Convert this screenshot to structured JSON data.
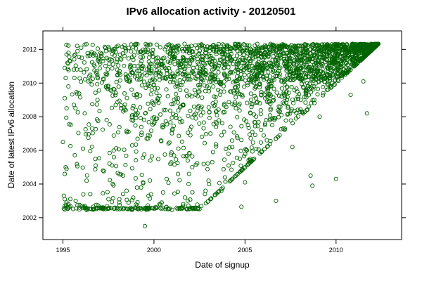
{
  "chart_data": {
    "type": "scatter",
    "title": "IPv6 allocation activity -  20120501",
    "xlabel": "Date of signup",
    "ylabel": "Date of latest IPv6 allocation",
    "xlim": [
      1993.9,
      2013.6
    ],
    "ylim": [
      2000.7,
      2013.1
    ],
    "x_ticks": [
      1995,
      2000,
      2005,
      2010
    ],
    "y_ticks": [
      2002,
      2004,
      2006,
      2008,
      2010,
      2012
    ],
    "x_tick_labels": [
      "1995",
      "2000",
      "2005",
      "2010"
    ],
    "y_tick_labels": [
      "2002",
      "2004",
      "2006",
      "2008",
      "2010",
      "2012"
    ],
    "grid": false,
    "legend": "none",
    "marker": "open-circle",
    "point_color": "#006400",
    "observations_end": 2012.33,
    "series": [
      {
        "points": [
          [
            1995.05,
            2002.55
          ],
          [
            1995.1,
            2002.7
          ],
          [
            1995.15,
            2002.6
          ],
          [
            1995.2,
            2002.9
          ],
          [
            1995.1,
            2003.1
          ],
          [
            1995.25,
            2002.6
          ],
          [
            1995.05,
            2003.3
          ],
          [
            1995.3,
            2002.8
          ],
          [
            1995.1,
            2004.6
          ],
          [
            1995.2,
            2004.9
          ],
          [
            1995.15,
            2005.0
          ],
          [
            1995.0,
            2006.5
          ],
          [
            1995.2,
            2008.5
          ],
          [
            1995.1,
            2009.1
          ],
          [
            1995.3,
            2009.8
          ],
          [
            1995.15,
            2010.3
          ],
          [
            1995.1,
            2010.9
          ],
          [
            1995.25,
            2011.2
          ],
          [
            1995.2,
            2011.7
          ],
          [
            1995.4,
            2011.3
          ],
          [
            1995.6,
            2010.8
          ],
          [
            1995.8,
            2011.9
          ],
          [
            1996.0,
            2012.1
          ],
          [
            1995.7,
            2003.0
          ],
          [
            1996.2,
            2002.7
          ],
          [
            1996.5,
            2003.4
          ],
          [
            1996.3,
            2004.2
          ],
          [
            1996.8,
            2005.1
          ],
          [
            1996.1,
            2006.1
          ],
          [
            1996.6,
            2007.3
          ],
          [
            1996.2,
            2008.2
          ],
          [
            1996.9,
            2009.0
          ],
          [
            1996.4,
            2010.1
          ],
          [
            1996.7,
            2011.1
          ],
          [
            1997.1,
            2011.6
          ],
          [
            1997.3,
            2012.15
          ],
          [
            1997.0,
            2002.6
          ],
          [
            1997.5,
            2003.1
          ],
          [
            1997.2,
            2004.8
          ],
          [
            1997.8,
            2005.6
          ],
          [
            1997.4,
            2007.8
          ],
          [
            1997.9,
            2008.7
          ],
          [
            1997.6,
            2009.6
          ],
          [
            1998.0,
            2010.5
          ],
          [
            1998.2,
            2011.4
          ],
          [
            1998.4,
            2012.1
          ],
          [
            1998.1,
            2002.9
          ],
          [
            1998.5,
            2003.6
          ],
          [
            1998.3,
            2004.5
          ],
          [
            1998.8,
            2006.3
          ],
          [
            1998.6,
            2007.1
          ],
          [
            1999.0,
            2008.4
          ],
          [
            1998.9,
            2009.3
          ],
          [
            1999.2,
            2010.2
          ],
          [
            1999.1,
            2011.0
          ],
          [
            1999.4,
            2011.8
          ],
          [
            1999.6,
            2012.2
          ],
          [
            1999.3,
            2002.5
          ],
          [
            1999.5,
            2001.5
          ],
          [
            1999.7,
            2003.3
          ],
          [
            1999.4,
            2004.1
          ],
          [
            1999.8,
            2005.4
          ],
          [
            1999.6,
            2006.7
          ],
          [
            2000.0,
            2007.6
          ],
          [
            1999.9,
            2008.9
          ],
          [
            2000.2,
            2009.7
          ],
          [
            2000.1,
            2010.6
          ],
          [
            2000.4,
            2011.3
          ],
          [
            2000.6,
            2012.0
          ],
          [
            2000.3,
            2002.8
          ],
          [
            2000.5,
            2003.5
          ],
          [
            2000.7,
            2004.3
          ],
          [
            2000.9,
            2005.2
          ],
          [
            2000.8,
            2006.4
          ],
          [
            2001.0,
            2007.2
          ],
          [
            2001.2,
            2008.1
          ],
          [
            2001.1,
            2009.0
          ],
          [
            2001.4,
            2009.9
          ],
          [
            2001.3,
            2010.7
          ],
          [
            2001.6,
            2011.5
          ],
          [
            2001.8,
            2012.15
          ],
          [
            2001.5,
            2002.6
          ],
          [
            2001.7,
            2003.2
          ],
          [
            2001.9,
            2004.0
          ],
          [
            2002.1,
            2005.0
          ],
          [
            2002.0,
            2006.9
          ],
          [
            2002.3,
            2007.9
          ],
          [
            2002.2,
            2008.6
          ],
          [
            2002.5,
            2009.5
          ],
          [
            2002.4,
            2010.4
          ],
          [
            2002.7,
            2011.2
          ],
          [
            2002.9,
            2012.0
          ],
          [
            2002.6,
            2002.7
          ],
          [
            2002.8,
            2003.4
          ],
          [
            2003.0,
            2004.2
          ],
          [
            2003.2,
            2005.3
          ],
          [
            2003.1,
            2007.0
          ],
          [
            2003.4,
            2008.3
          ],
          [
            2003.3,
            2009.2
          ],
          [
            2003.6,
            2010.0
          ],
          [
            2003.5,
            2010.9
          ],
          [
            2003.8,
            2011.7
          ],
          [
            2004.0,
            2012.2
          ],
          [
            2003.7,
            2003.6
          ],
          [
            2003.9,
            2004.4
          ],
          [
            2004.1,
            2005.1
          ],
          [
            2004.3,
            2006.2
          ],
          [
            2004.2,
            2007.4
          ],
          [
            2004.5,
            2008.5
          ],
          [
            2004.4,
            2009.4
          ],
          [
            2004.7,
            2010.3
          ],
          [
            2004.6,
            2011.1
          ],
          [
            2004.9,
            2011.9
          ],
          [
            2004.8,
            2002.65
          ],
          [
            2005.0,
            2004.1
          ],
          [
            2005.2,
            2005.4
          ],
          [
            2005.1,
            2006.0
          ],
          [
            2005.4,
            2007.1
          ],
          [
            2005.3,
            2008.2
          ],
          [
            2005.6,
            2009.1
          ],
          [
            2005.5,
            2010.0
          ],
          [
            2005.8,
            2010.8
          ],
          [
            2005.7,
            2011.6
          ],
          [
            2006.0,
            2012.1
          ],
          [
            2005.9,
            2005.9
          ],
          [
            2006.2,
            2006.6
          ],
          [
            2006.1,
            2007.5
          ],
          [
            2006.4,
            2008.4
          ],
          [
            2006.3,
            2009.3
          ],
          [
            2006.6,
            2010.2
          ],
          [
            2006.5,
            2011.0
          ],
          [
            2006.8,
            2011.8
          ],
          [
            2006.7,
            2003.0
          ],
          [
            2006.9,
            2006.9
          ],
          [
            2007.1,
            2007.3
          ],
          [
            2007.0,
            2008.1
          ],
          [
            2007.3,
            2009.0
          ],
          [
            2007.2,
            2009.9
          ],
          [
            2007.5,
            2010.7
          ],
          [
            2007.4,
            2011.4
          ],
          [
            2007.7,
            2012.2
          ],
          [
            2007.6,
            2006.2
          ],
          [
            2007.8,
            2007.9
          ],
          [
            2008.0,
            2008.3
          ],
          [
            2007.9,
            2009.2
          ],
          [
            2008.2,
            2010.1
          ],
          [
            2008.1,
            2010.9
          ],
          [
            2008.4,
            2011.6
          ],
          [
            2008.3,
            2012.0
          ],
          [
            2008.6,
            2004.5
          ],
          [
            2008.7,
            2003.9
          ],
          [
            2008.5,
            2008.6
          ],
          [
            2008.8,
            2009.0
          ],
          [
            2008.7,
            2009.8
          ],
          [
            2009.0,
            2010.5
          ],
          [
            2008.9,
            2011.2
          ],
          [
            2009.2,
            2011.9
          ],
          [
            2009.1,
            2008.0
          ],
          [
            2009.3,
            2009.4
          ],
          [
            2009.5,
            2009.6
          ],
          [
            2009.4,
            2010.3
          ],
          [
            2009.7,
            2010.9
          ],
          [
            2009.6,
            2011.6
          ],
          [
            2009.9,
            2012.1
          ],
          [
            2010.0,
            2004.3
          ],
          [
            2009.8,
            2010.0
          ],
          [
            2010.1,
            2010.2
          ],
          [
            2010.0,
            2010.8
          ],
          [
            2010.3,
            2011.3
          ],
          [
            2010.2,
            2011.9
          ],
          [
            2010.5,
            2010.6
          ],
          [
            2010.7,
            2010.8
          ],
          [
            2010.6,
            2011.4
          ],
          [
            2010.9,
            2011.9
          ],
          [
            2010.8,
            2009.3
          ],
          [
            2011.0,
            2011.1
          ],
          [
            2011.2,
            2011.3
          ],
          [
            2011.1,
            2011.8
          ],
          [
            2011.4,
            2012.2
          ],
          [
            2011.6,
            2011.7
          ],
          [
            2011.5,
            2010.1
          ],
          [
            2011.7,
            2008.2
          ],
          [
            2011.8,
            2011.9
          ],
          [
            2011.9,
            2012.1
          ],
          [
            2012.0,
            2012.1
          ],
          [
            2012.1,
            2012.2
          ],
          [
            2011.3,
            2012.1
          ],
          [
            2011.8,
            2012.25
          ],
          [
            2012.2,
            2012.3
          ],
          [
            2012.3,
            2012.3
          ]
        ]
      }
    ]
  }
}
